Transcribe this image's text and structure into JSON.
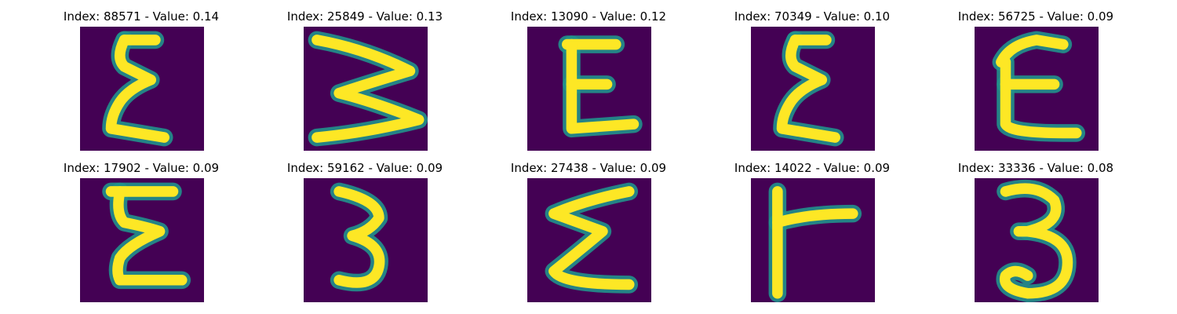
{
  "colormap": {
    "background": "#440154",
    "mid": "#21918c",
    "stroke": "#fde725"
  },
  "panels": [
    {
      "title": "Index: 88571 - Value: 0.14",
      "glyph": "sigma-narrow"
    },
    {
      "title": "Index: 25849 - Value: 0.13",
      "glyph": "sideways-w"
    },
    {
      "title": "Index: 13090 - Value: 0.12",
      "glyph": "e-block"
    },
    {
      "title": "Index: 70349 - Value: 0.10",
      "glyph": "sigma-narrow"
    },
    {
      "title": "Index: 56725 - Value: 0.09",
      "glyph": "e-round"
    },
    {
      "title": "Index: 17902 - Value: 0.09",
      "glyph": "sigma-bold"
    },
    {
      "title": "Index: 59162 - Value: 0.09",
      "glyph": "three-narrow"
    },
    {
      "title": "Index: 27438 - Value: 0.09",
      "glyph": "sigma-wide"
    },
    {
      "title": "Index: 14022 - Value: 0.09",
      "glyph": "r-shape"
    },
    {
      "title": "Index: 33336 - Value: 0.08",
      "glyph": "three-round"
    }
  ]
}
